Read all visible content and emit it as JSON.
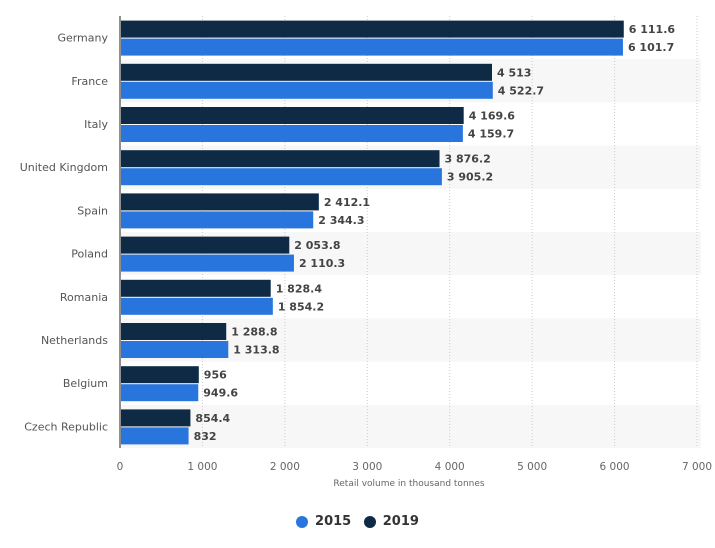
{
  "chart_data": {
    "type": "bar",
    "orientation": "horizontal",
    "title": "",
    "categories": [
      "Germany",
      "France",
      "Italy",
      "United Kingdom",
      "Spain",
      "Poland",
      "Romania",
      "Netherlands",
      "Belgium",
      "Czech Republic"
    ],
    "series": [
      {
        "name": "2019",
        "color": "#0f2a44",
        "values": [
          6111.6,
          4513,
          4169.6,
          3876.2,
          2412.1,
          2053.8,
          1828.4,
          1288.8,
          956,
          854.4
        ],
        "labels": [
          "6 111.6",
          "4 513",
          "4 169.6",
          "3 876.2",
          "2 412.1",
          "2 053.8",
          "1 828.4",
          "1 288.8",
          "956",
          "854.4"
        ]
      },
      {
        "name": "2015",
        "color": "#2876dd",
        "values": [
          6101.7,
          4522.7,
          4159.7,
          3905.2,
          2344.3,
          2110.3,
          1854.2,
          1313.8,
          949.6,
          832
        ],
        "labels": [
          "6 101.7",
          "4 522.7",
          "4 159.7",
          "3 905.2",
          "2 344.3",
          "2 110.3",
          "1 854.2",
          "1 313.8",
          "949.6",
          "832"
        ]
      }
    ],
    "xlabel": "Retail volume in thousand tonnes",
    "ylabel": "",
    "xlim": [
      0,
      7000
    ],
    "xticks": [
      0,
      1000,
      2000,
      3000,
      4000,
      5000,
      6000,
      7000
    ],
    "xtick_labels": [
      "0",
      "1 000",
      "2 000",
      "3 000",
      "4 000",
      "5 000",
      "6 000",
      "7 000"
    ],
    "grid": true,
    "legend_position": "bottom-center"
  },
  "legend": {
    "items": [
      {
        "label": "2015",
        "color": "#2876dd"
      },
      {
        "label": "2019",
        "color": "#0f2a44"
      }
    ]
  }
}
